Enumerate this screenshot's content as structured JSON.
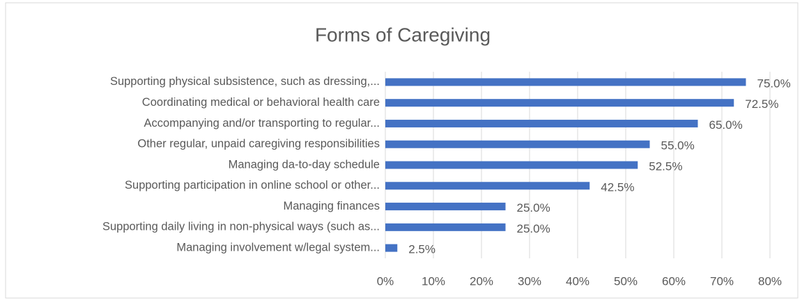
{
  "chart_data": {
    "type": "bar",
    "orientation": "horizontal",
    "title": "Forms of Caregiving",
    "categories": [
      "Supporting physical subsistence, such as dressing,...",
      "Coordinating medical or behavioral health care",
      "Accompanying and/or transporting to regular...",
      "Other regular, unpaid caregiving responsibilities",
      "Managing da-to-day schedule",
      "Supporting participation in online school or other...",
      "Managing finances",
      "Supporting daily living in non-physical ways (such as...",
      "Managing involvement w/legal system..."
    ],
    "values": [
      75.0,
      72.5,
      65.0,
      55.0,
      52.5,
      42.5,
      25.0,
      25.0,
      2.5
    ],
    "value_labels": [
      "75.0%",
      "72.5%",
      "65.0%",
      "55.0%",
      "52.5%",
      "42.5%",
      "25.0%",
      "25.0%",
      "2.5%"
    ],
    "color": "#4472c4",
    "xlim": [
      0,
      80
    ],
    "xticks": [
      {
        "value": 0,
        "label": "0%"
      },
      {
        "value": 10,
        "label": "10%"
      },
      {
        "value": 20,
        "label": "20%"
      },
      {
        "value": 30,
        "label": "30%"
      },
      {
        "value": 40,
        "label": "40%"
      },
      {
        "value": 50,
        "label": "50%"
      },
      {
        "value": 60,
        "label": "60%"
      },
      {
        "value": 70,
        "label": "70%"
      },
      {
        "value": 80,
        "label": "80%"
      }
    ],
    "grid": true
  }
}
